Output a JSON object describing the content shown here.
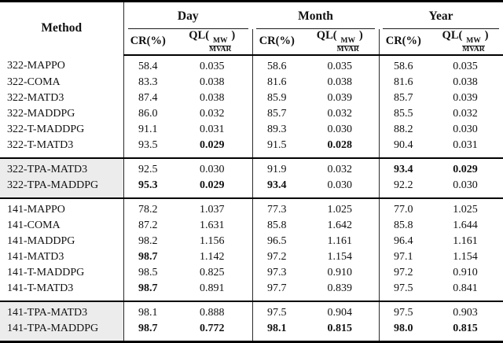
{
  "table": {
    "col_method": "Method",
    "groups_header": [
      "Day",
      "Month",
      "Year"
    ],
    "sub_cr": "CR(%)",
    "ql": {
      "prefix": "QL(",
      "numerator": "MW",
      "denominator": "MVAR",
      "suffix": ")"
    },
    "highlight_color": "#ececec",
    "groups": [
      {
        "highlight": false,
        "rows": [
          {
            "method": "322-MAPPO",
            "values": [
              "58.4",
              "0.035",
              "58.6",
              "0.035",
              "58.6",
              "0.035"
            ],
            "bold": [
              false,
              false,
              false,
              false,
              false,
              false
            ]
          },
          {
            "method": "322-COMA",
            "values": [
              "83.3",
              "0.038",
              "81.6",
              "0.038",
              "81.6",
              "0.038"
            ],
            "bold": [
              false,
              false,
              false,
              false,
              false,
              false
            ]
          },
          {
            "method": "322-MATD3",
            "values": [
              "87.4",
              "0.038",
              "85.9",
              "0.039",
              "85.7",
              "0.039"
            ],
            "bold": [
              false,
              false,
              false,
              false,
              false,
              false
            ]
          },
          {
            "method": "322-MADDPG",
            "values": [
              "86.0",
              "0.032",
              "85.7",
              "0.032",
              "85.5",
              "0.032"
            ],
            "bold": [
              false,
              false,
              false,
              false,
              false,
              false
            ]
          },
          {
            "method": "322-T-MADDPG",
            "values": [
              "91.1",
              "0.031",
              "89.3",
              "0.030",
              "88.2",
              "0.030"
            ],
            "bold": [
              false,
              false,
              false,
              false,
              false,
              false
            ]
          },
          {
            "method": "322-T-MATD3",
            "values": [
              "93.5",
              "0.029",
              "91.5",
              "0.028",
              "90.4",
              "0.031"
            ],
            "bold": [
              false,
              true,
              false,
              true,
              false,
              false
            ]
          }
        ]
      },
      {
        "highlight": true,
        "rows": [
          {
            "method": "322-TPA-MATD3",
            "values": [
              "92.5",
              "0.030",
              "91.9",
              "0.032",
              "93.4",
              "0.029"
            ],
            "bold": [
              false,
              false,
              false,
              false,
              true,
              true
            ]
          },
          {
            "method": "322-TPA-MADDPG",
            "values": [
              "95.3",
              "0.029",
              "93.4",
              "0.030",
              "92.2",
              "0.030"
            ],
            "bold": [
              true,
              true,
              true,
              false,
              false,
              false
            ]
          }
        ]
      },
      {
        "highlight": false,
        "rows": [
          {
            "method": "141-MAPPO",
            "values": [
              "78.2",
              "1.037",
              "77.3",
              "1.025",
              "77.0",
              "1.025"
            ],
            "bold": [
              false,
              false,
              false,
              false,
              false,
              false
            ]
          },
          {
            "method": "141-COMA",
            "values": [
              "87.2",
              "1.631",
              "85.8",
              "1.642",
              "85.8",
              "1.644"
            ],
            "bold": [
              false,
              false,
              false,
              false,
              false,
              false
            ]
          },
          {
            "method": "141-MADDPG",
            "values": [
              "98.2",
              "1.156",
              "96.5",
              "1.161",
              "96.4",
              "1.161"
            ],
            "bold": [
              false,
              false,
              false,
              false,
              false,
              false
            ]
          },
          {
            "method": "141-MATD3",
            "values": [
              "98.7",
              "1.142",
              "97.2",
              "1.154",
              "97.1",
              "1.154"
            ],
            "bold": [
              true,
              false,
              false,
              false,
              false,
              false
            ]
          },
          {
            "method": "141-T-MADDPG",
            "values": [
              "98.5",
              "0.825",
              "97.3",
              "0.910",
              "97.2",
              "0.910"
            ],
            "bold": [
              false,
              false,
              false,
              false,
              false,
              false
            ]
          },
          {
            "method": "141-T-MATD3",
            "values": [
              "98.7",
              "0.891",
              "97.7",
              "0.839",
              "97.5",
              "0.841"
            ],
            "bold": [
              true,
              false,
              false,
              false,
              false,
              false
            ]
          }
        ]
      },
      {
        "highlight": true,
        "rows": [
          {
            "method": "141-TPA-MATD3",
            "values": [
              "98.1",
              "0.888",
              "97.5",
              "0.904",
              "97.5",
              "0.903"
            ],
            "bold": [
              false,
              false,
              false,
              false,
              false,
              false
            ]
          },
          {
            "method": "141-TPA-MADDPG",
            "values": [
              "98.7",
              "0.772",
              "98.1",
              "0.815",
              "98.0",
              "0.815"
            ],
            "bold": [
              true,
              true,
              true,
              true,
              true,
              true
            ]
          }
        ]
      }
    ]
  }
}
